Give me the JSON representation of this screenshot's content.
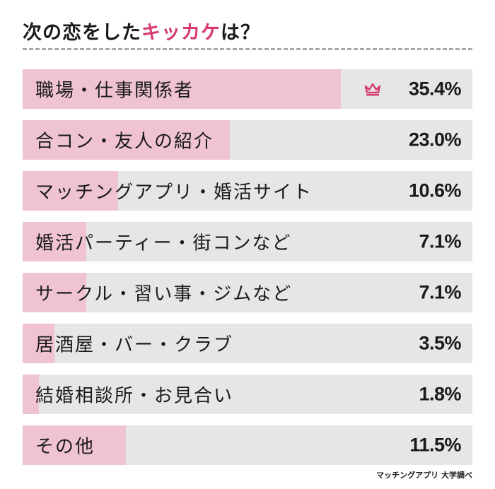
{
  "title": {
    "prefix": "次の恋をした",
    "highlight": "キッカケ",
    "suffix": "は？"
  },
  "colors": {
    "accent": "#d63a6e",
    "bar_fill": "#efc3d3",
    "bar_track": "#e6e6e6"
  },
  "source_note": "マッチングアプリ 大学調べ",
  "chart_data": {
    "type": "bar",
    "orientation": "horizontal",
    "title": "次の恋をしたキッカケは？",
    "unit": "%",
    "xlim": [
      0,
      50
    ],
    "categories": [
      "職場・仕事関係者",
      "合コン・友人の紹介",
      "マッチングアプリ・婚活サイト",
      "婚活パーティー・街コンなど",
      "サークル・習い事・ジムなど",
      "居酒屋・バー・クラブ",
      "結婚相談所・お見合い",
      "その他"
    ],
    "values": [
      35.4,
      23.0,
      10.6,
      7.1,
      7.1,
      3.5,
      1.8,
      11.5
    ],
    "value_labels": [
      "35.4%",
      "23.0%",
      "10.6%",
      "7.1%",
      "7.1%",
      "3.5%",
      "1.8%",
      "11.5%"
    ],
    "top_marker_icon": "crown-icon"
  }
}
